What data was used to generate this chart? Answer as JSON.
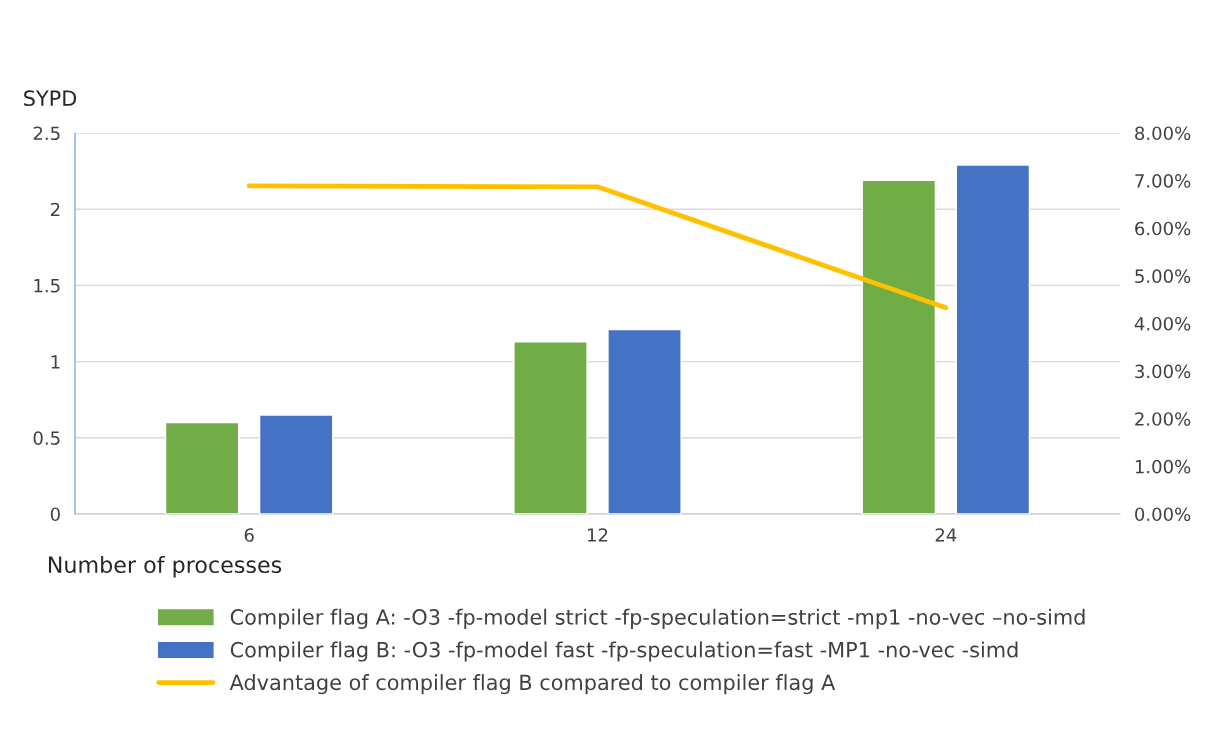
{
  "chart_data": {
    "type": "bar",
    "categories": [
      "6",
      "12",
      "24"
    ],
    "xlabel": "Number of processes",
    "ylabel": "SYPD",
    "ylim": [
      0,
      2.5
    ],
    "yticks": [
      0,
      0.5,
      1,
      1.5,
      2,
      2.5
    ],
    "y2lim": [
      0,
      8
    ],
    "y2ticks": [
      {
        "value": 0,
        "label": "0.00%"
      },
      {
        "value": 1,
        "label": "1.00%"
      },
      {
        "value": 2,
        "label": "2.00%"
      },
      {
        "value": 3,
        "label": "3.00%"
      },
      {
        "value": 4,
        "label": "4.00%"
      },
      {
        "value": 5,
        "label": "5.00%"
      },
      {
        "value": 6,
        "label": "6.00%"
      },
      {
        "value": 7,
        "label": "7.00%"
      },
      {
        "value": 8,
        "label": "8.00%"
      }
    ],
    "grid": "y",
    "legend": "bottom",
    "series": [
      {
        "name": "Compiler flag A: -O3 -fp-model strict -fp-speculation=strict -mp1 -no-vec –no-simd",
        "color": "#70ad47",
        "values": [
          0.6,
          1.13,
          2.19
        ]
      },
      {
        "name": "Compiler flag B: -O3 -fp-model fast -fp-speculation=fast -MP1 -no-vec -simd",
        "color": "#4472c4",
        "values": [
          0.65,
          1.21,
          2.29
        ]
      },
      {
        "name": "Advantage of compiler flag B compared to compiler flag A",
        "type": "line",
        "axis": "y2",
        "color": "#ffc000",
        "values": [
          6.89,
          6.87,
          4.33
        ]
      }
    ]
  }
}
